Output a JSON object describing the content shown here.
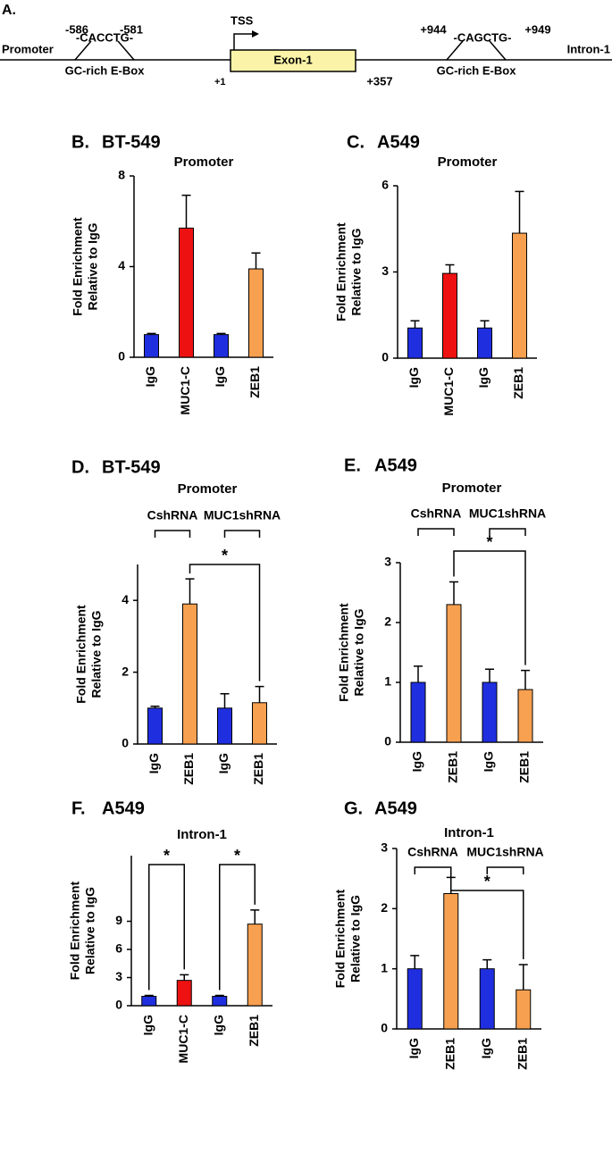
{
  "diagram": {
    "label": "A.",
    "promoter": "Promoter",
    "intron": "Intron-1",
    "tss": "TSS",
    "exon": "Exon-1",
    "exon_start": "+1",
    "exon_end": "+357",
    "ebox1": {
      "start": "-586",
      "seq": "-CACCTG-",
      "end": "-581",
      "name": "GC-rich E-Box"
    },
    "ebox2": {
      "start": "+944",
      "seq": "-CAGCTG-",
      "end": "+949",
      "name": "GC-rich E-Box"
    }
  },
  "chart_data": [
    {
      "type": "bar",
      "label": "B.",
      "cell_line": "BT-549",
      "title": "Promoter",
      "ylabel": [
        "Fold Enrichment",
        "Relative to IgG"
      ],
      "categories": [
        "IgG",
        "MUC1-C",
        "IgG",
        "ZEB1"
      ],
      "values": [
        1.0,
        5.7,
        1.0,
        3.9
      ],
      "errors": [
        0.05,
        1.45,
        0.05,
        0.7
      ],
      "colors": [
        "#1f2fe0",
        "#ee1111",
        "#1f2fe0",
        "#f7a050"
      ],
      "ylim": [
        0,
        8
      ],
      "yticks": [
        0,
        4,
        8
      ]
    },
    {
      "type": "bar",
      "label": "C.",
      "cell_line": "A549",
      "title": "Promoter",
      "ylabel": [
        "Fold Enrichment",
        "Relative to IgG"
      ],
      "categories": [
        "IgG",
        "MUC1-C",
        "IgG",
        "ZEB1"
      ],
      "values": [
        1.05,
        2.95,
        1.05,
        4.35
      ],
      "errors": [
        0.25,
        0.3,
        0.25,
        1.45
      ],
      "colors": [
        "#1f2fe0",
        "#ee1111",
        "#1f2fe0",
        "#f7a050"
      ],
      "ylim": [
        0,
        6
      ],
      "yticks": [
        0,
        3,
        6
      ]
    },
    {
      "type": "bar",
      "label": "D.",
      "cell_line": "BT-549",
      "title": "Promoter",
      "ylabel": [
        "Fold Enrichment",
        "Relative to IgG"
      ],
      "categories": [
        "IgG",
        "ZEB1",
        "IgG",
        "ZEB1"
      ],
      "values": [
        1.0,
        3.9,
        1.0,
        1.15
      ],
      "errors": [
        0.05,
        0.7,
        0.4,
        0.45
      ],
      "colors": [
        "#1f2fe0",
        "#f7a050",
        "#1f2fe0",
        "#f7a050"
      ],
      "ylim": [
        0,
        5
      ],
      "yticks": [
        0,
        2,
        4
      ],
      "groups": [
        {
          "label": "CshRNA",
          "from": 0,
          "to": 1
        },
        {
          "label": "MUC1shRNA",
          "from": 2,
          "to": 3
        }
      ],
      "significance": [
        {
          "from": 1,
          "to": 3,
          "label": "*"
        }
      ]
    },
    {
      "type": "bar",
      "label": "E.",
      "cell_line": "A549",
      "title": "Promoter",
      "ylabel": [
        "Fold Enrichment",
        "Relative to IgG"
      ],
      "categories": [
        "IgG",
        "ZEB1",
        "IgG",
        "ZEB1"
      ],
      "values": [
        1.0,
        2.3,
        1.0,
        0.88
      ],
      "errors": [
        0.27,
        0.38,
        0.22,
        0.32
      ],
      "colors": [
        "#1f2fe0",
        "#f7a050",
        "#1f2fe0",
        "#f7a050"
      ],
      "ylim": [
        0,
        3
      ],
      "yticks": [
        0,
        1,
        2,
        3
      ],
      "groups": [
        {
          "label": "CshRNA",
          "from": 0,
          "to": 1
        },
        {
          "label": "MUC1shRNA",
          "from": 2,
          "to": 3
        }
      ],
      "significance": [
        {
          "from": 1,
          "to": 3,
          "label": "*"
        }
      ]
    },
    {
      "type": "bar",
      "label": "F.",
      "cell_line": "A549",
      "title": "Intron-1",
      "ylabel": [
        "Fold Enrichment",
        "Relative to IgG"
      ],
      "categories": [
        "IgG",
        "MUC1-C",
        "IgG",
        "ZEB1"
      ],
      "values": [
        1.0,
        2.7,
        1.0,
        8.7
      ],
      "errors": [
        0.1,
        0.6,
        0.1,
        1.5
      ],
      "colors": [
        "#1f2fe0",
        "#ee1111",
        "#1f2fe0",
        "#f7a050"
      ],
      "ylim": [
        0,
        16
      ],
      "yticks": [
        0,
        3,
        6,
        9
      ],
      "significance": [
        {
          "from": 0,
          "to": 1,
          "label": "*"
        },
        {
          "from": 2,
          "to": 3,
          "label": "*"
        }
      ]
    },
    {
      "type": "bar",
      "label": "G.",
      "cell_line": "A549",
      "title": "Intron-1",
      "ylabel": [
        "Fold Enrichment",
        "Relative to IgG"
      ],
      "categories": [
        "IgG",
        "ZEB1",
        "IgG",
        "ZEB1"
      ],
      "values": [
        1.0,
        2.25,
        1.0,
        0.65
      ],
      "errors": [
        0.22,
        0.27,
        0.15,
        0.42
      ],
      "colors": [
        "#1f2fe0",
        "#f7a050",
        "#1f2fe0",
        "#f7a050"
      ],
      "ylim": [
        0,
        3
      ],
      "yticks": [
        0,
        1,
        2,
        3
      ],
      "groups": [
        {
          "label": "CshRNA",
          "from": 0,
          "to": 1
        },
        {
          "label": "MUC1shRNA",
          "from": 2,
          "to": 3
        }
      ],
      "significance": [
        {
          "from": 1,
          "to": 3,
          "label": "*"
        }
      ]
    }
  ]
}
